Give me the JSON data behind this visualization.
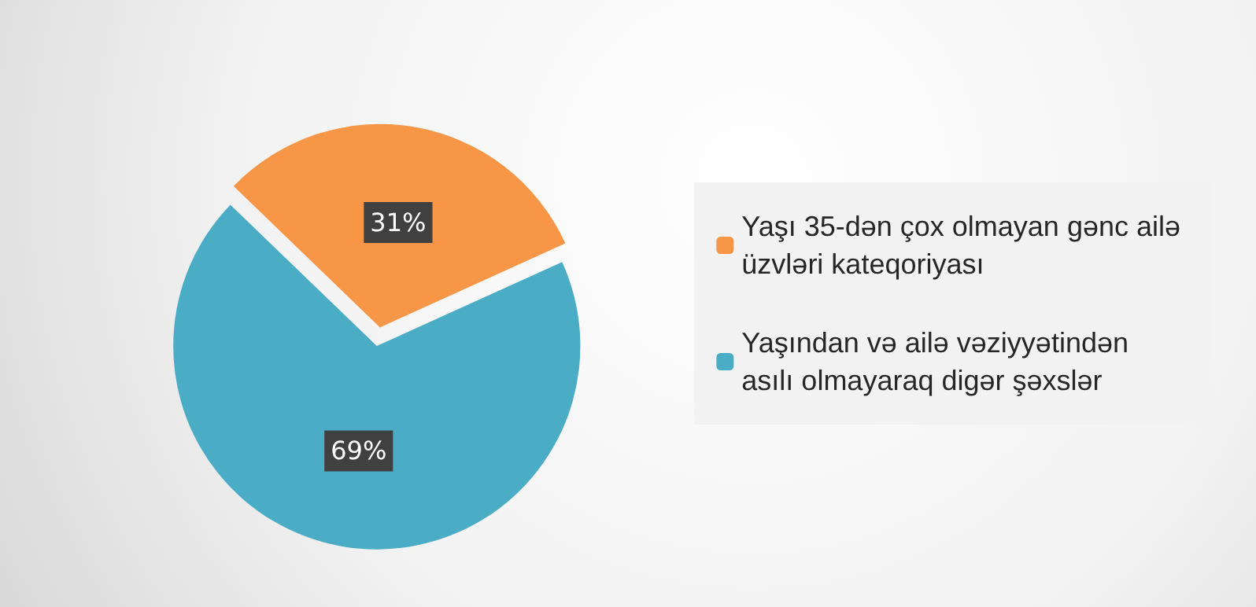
{
  "chart_data": {
    "type": "pie",
    "categories": [
      "Yaşı 35-dən çox olmayan gənc ailə üzvləri kateqoriyası",
      "Yaşından və ailə vəziyyətindən asılı olmayaraq digər şəxslər"
    ],
    "values": [
      31,
      69
    ],
    "colors": [
      "#f79646",
      "#4bacc6"
    ],
    "value_labels": [
      "31%",
      "69%"
    ],
    "legend": "right"
  }
}
